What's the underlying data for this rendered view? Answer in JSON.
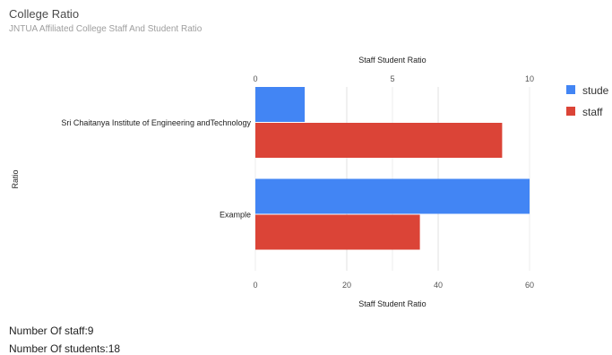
{
  "header": {
    "title": "College Ratio",
    "subtitle": "JNTUA Affiliated College Staff And Student Ratio"
  },
  "chart_data": {
    "type": "bar",
    "orientation": "horizontal",
    "categories": [
      "Sri Chaitanya Institute of Engineering andTechnology",
      "Example"
    ],
    "series": [
      {
        "name": "stude",
        "color": "#4285f4",
        "axis": "top",
        "values": [
          1.8,
          10
        ]
      },
      {
        "name": "staff",
        "color": "#db4437",
        "axis": "bottom",
        "values": [
          54,
          36
        ]
      }
    ],
    "top_axis": {
      "label": "Staff Student Ratio",
      "ticks": [
        "0",
        "5",
        "10"
      ],
      "range": [
        0,
        10
      ]
    },
    "bottom_axis": {
      "label": "Staff Student Ratio",
      "ticks": [
        "0",
        "20",
        "40",
        "60"
      ],
      "range": [
        0,
        60
      ]
    },
    "ylabel": "Ratio",
    "legend_position": "right",
    "grid": true
  },
  "footer": {
    "staff_text": "Number Of staff:9",
    "students_text": "Number Of students:18"
  }
}
